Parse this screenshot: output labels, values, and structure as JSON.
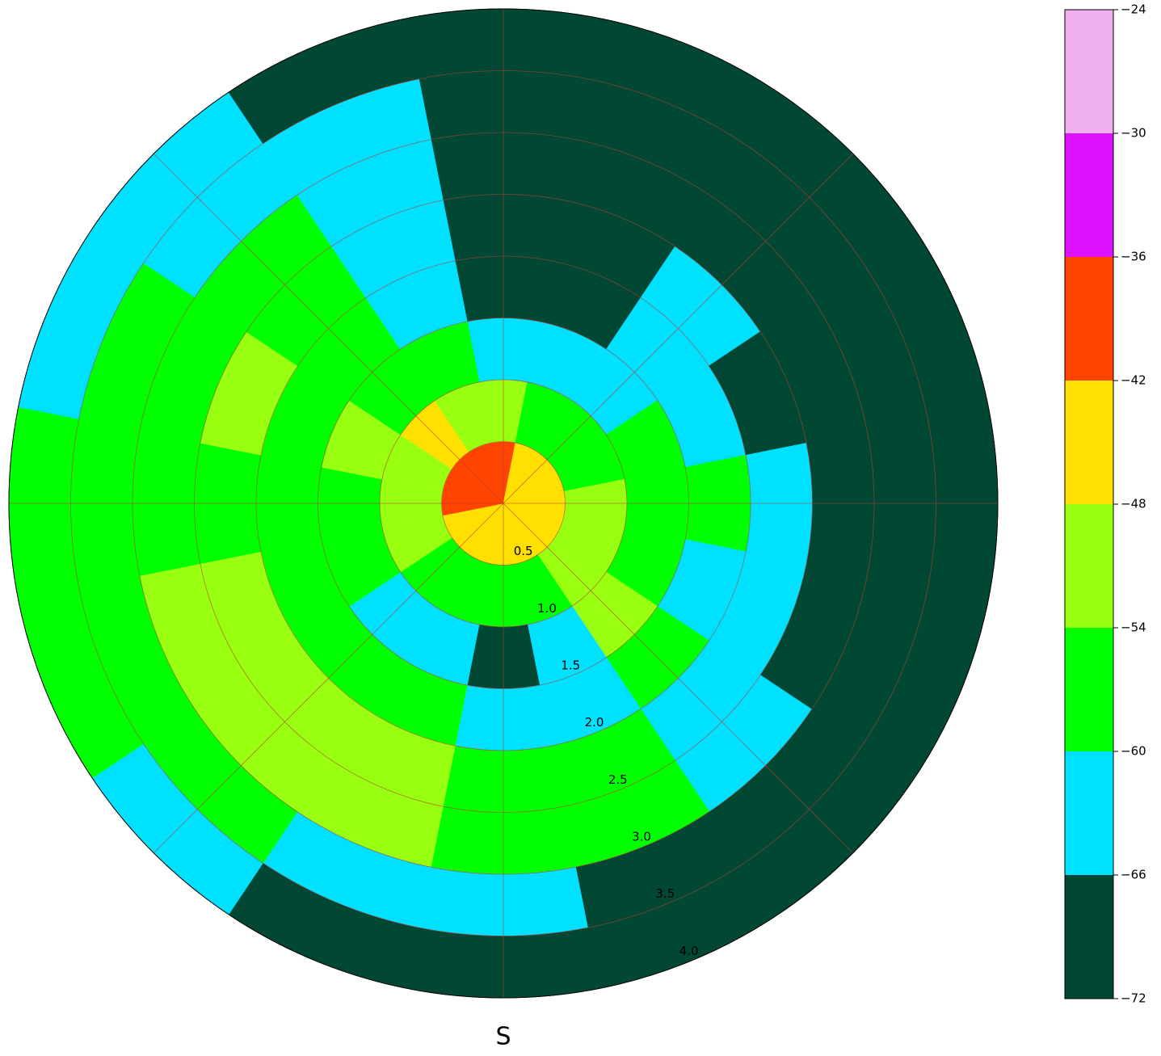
{
  "chart_data": {
    "type": "polar-heatmap",
    "direction_label": "S",
    "rlim": [
      0,
      4.0
    ],
    "rticks": [
      {
        "value": 0.5,
        "label": "0.5"
      },
      {
        "value": 1.0,
        "label": "1.0"
      },
      {
        "value": 1.5,
        "label": "1.5"
      },
      {
        "value": 2.0,
        "label": "2.0"
      },
      {
        "value": 2.5,
        "label": "2.5"
      },
      {
        "value": 3.0,
        "label": "3.0"
      },
      {
        "value": 3.5,
        "label": "3.5"
      },
      {
        "value": 4.0,
        "label": "4.0"
      }
    ],
    "thetaticks": [
      0,
      45,
      90,
      135,
      180,
      225,
      270,
      315
    ],
    "theta": [
      0,
      22.5,
      45,
      67.5,
      90,
      112.5,
      135,
      157.5,
      180,
      202.5,
      225,
      247.5,
      270,
      292.5,
      315,
      337.5
    ],
    "values": [
      [
        -40,
        -50,
        -64,
        -68,
        -70,
        -70,
        -70,
        -70
      ],
      [
        -45,
        -56,
        -62,
        -70,
        -70,
        -70,
        -70,
        -70
      ],
      [
        -48,
        -57,
        -62,
        -63,
        -64,
        -70,
        -70,
        -70
      ],
      [
        -46,
        -56,
        -58,
        -62,
        -70,
        -70,
        -70,
        -70
      ],
      [
        -44,
        -52,
        -57,
        -58,
        -63,
        -70,
        -70,
        -70
      ],
      [
        -44,
        -52,
        -58,
        -62,
        -64,
        -70,
        -70,
        -70
      ],
      [
        -46,
        -50,
        -54,
        -58,
        -62,
        -64,
        -70,
        -70
      ],
      [
        -45,
        -56,
        -63,
        -61,
        -57,
        -60,
        -70,
        -70
      ],
      [
        -45,
        -60,
        -68,
        -62,
        -56,
        -56,
        -63,
        -70
      ],
      [
        -46,
        -58,
        -64,
        -58,
        -52,
        -50,
        -62,
        -70
      ],
      [
        -48,
        -56,
        -62,
        -56,
        -50,
        -52,
        -58,
        -64
      ],
      [
        -46,
        -54,
        -58,
        -56,
        -52,
        -54,
        -56,
        -60
      ],
      [
        -42,
        -54,
        -56,
        -55,
        -56,
        -56,
        -55,
        -58
      ],
      [
        -40,
        -50,
        -54,
        -56,
        -52,
        -55,
        -56,
        -62
      ],
      [
        -40,
        -48,
        -56,
        -58,
        -57,
        -58,
        -62,
        -64
      ],
      [
        -42,
        -52,
        -58,
        -62,
        -64,
        -62,
        -64,
        -68
      ]
    ],
    "colorbar": {
      "ticks": [
        {
          "value": -72,
          "label": "−72"
        },
        {
          "value": -66,
          "label": "−66"
        },
        {
          "value": -60,
          "label": "−60"
        },
        {
          "value": -54,
          "label": "−54"
        },
        {
          "value": -48,
          "label": "−48"
        },
        {
          "value": -42,
          "label": "−42"
        },
        {
          "value": -36,
          "label": "−36"
        },
        {
          "value": -30,
          "label": "−30"
        },
        {
          "value": -24,
          "label": "−24"
        }
      ],
      "colors": [
        "#004834",
        "#00e0ff",
        "#00ff00",
        "#99ff11",
        "#ffe000",
        "#ff4400",
        "#dd11ff",
        "#f0b0f0"
      ]
    }
  }
}
